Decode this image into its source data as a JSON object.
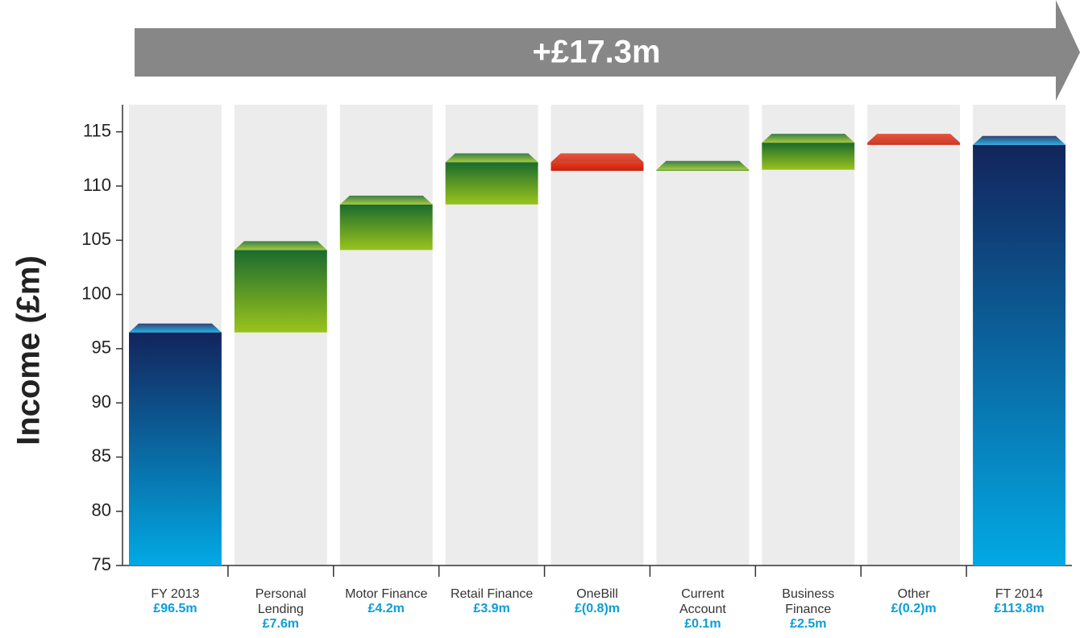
{
  "chart_data": {
    "type": "waterfall",
    "annotation": "+£17.3m",
    "y_label": "Income (£m)",
    "categories": [
      "FY 2013",
      "Personal Lending",
      "Motor Finance",
      "Retail Finance",
      "OneBill",
      "Current Account",
      "Business Finance",
      "Other",
      "FT 2014"
    ],
    "values": [
      96.5,
      7.6,
      4.2,
      3.9,
      -0.8,
      0.1,
      2.5,
      -0.2,
      113.8
    ],
    "value_labels": [
      "£96.5m",
      "£7.6m",
      "£4.2m",
      "£3.9m",
      "£(0.8)m",
      "£0.1m",
      "£2.5m",
      "£(0.2)m",
      "£113.8m"
    ],
    "ylim": [
      75,
      117.5
    ],
    "yticks": [
      75,
      80,
      85,
      90,
      95,
      100,
      105,
      110,
      115
    ],
    "total_colors": [
      "#13245c",
      "#02a9e4"
    ],
    "increase_colors": [
      "#1a6b2e",
      "#9ac31c"
    ],
    "decrease_colors": [
      "#e8391b",
      "#c6200e"
    ]
  }
}
